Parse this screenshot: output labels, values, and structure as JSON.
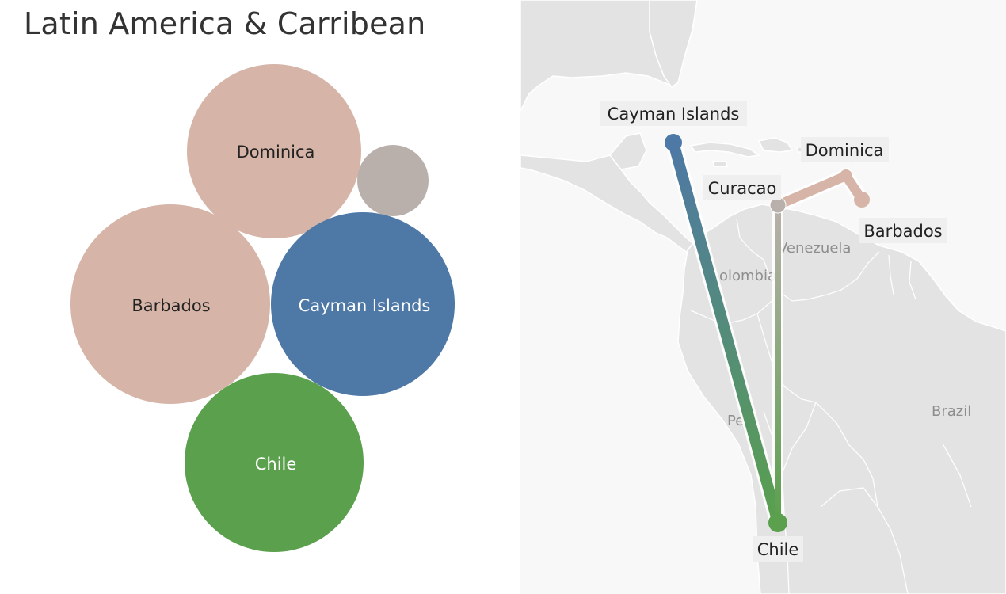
{
  "title": "Latin America & Carribean",
  "colors": {
    "dominica": "#d6b5a8",
    "barbados": "#d6b5a8",
    "curacao": "#b9b0ab",
    "cayman_islands": "#4e78a6",
    "chile": "#5aa04d",
    "label_light": "#ffffff",
    "label_dark": "#222222"
  },
  "bubbles": [
    {
      "name": "Dominica",
      "label": "Dominica",
      "color": "#d6b5a8",
      "label_color": "#222222"
    },
    {
      "name": "Curacao",
      "label": "",
      "color": "#b9b0ab",
      "label_color": "#222222"
    },
    {
      "name": "Barbados",
      "label": "Barbados",
      "color": "#d6b5a8",
      "label_color": "#222222"
    },
    {
      "name": "Cayman Islands",
      "label": "Cayman Islands",
      "color": "#4e78a6",
      "label_color": "#ffffff"
    },
    {
      "name": "Chile",
      "label": "Chile",
      "color": "#5aa04d",
      "label_color": "#ffffff"
    }
  ],
  "map": {
    "route_labels": {
      "cayman_islands": "Cayman Islands",
      "dominica": "Dominica",
      "curacao": "Curacao",
      "barbados": "Barbados",
      "chile": "Chile"
    },
    "country_labels": {
      "venezuela": "Venezuela",
      "colombia": "olombia",
      "peru": "Pe",
      "brazil": "Brazil"
    }
  }
}
